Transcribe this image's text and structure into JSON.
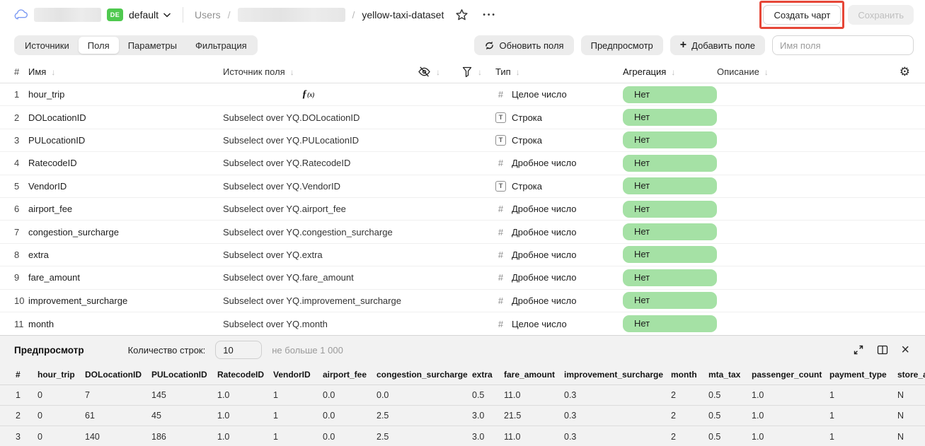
{
  "header": {
    "env_badge": "DE",
    "env_name": "default",
    "breadcrumb_root": "Users",
    "breadcrumb_sep": "/",
    "dataset_name": "yellow-taxi-dataset",
    "create_chart_label": "Создать чарт",
    "save_label": "Сохранить"
  },
  "tabs": {
    "items": [
      "Источники",
      "Поля",
      "Параметры",
      "Фильтрация"
    ],
    "active": "Поля"
  },
  "toolbar": {
    "refresh_label": "Обновить поля",
    "preview_label": "Предпросмотр",
    "add_field_label": "Добавить поле",
    "field_name_placeholder": "Имя поля"
  },
  "icons": {
    "sort_arrow": "↓",
    "gear": "⚙",
    "more": "•••",
    "close": "×",
    "plus": "+",
    "hash": "#",
    "str_box": "T",
    "formula": "ƒ",
    "formula_sub": "(x)"
  },
  "fields_table": {
    "headers": {
      "number": "#",
      "name": "Имя",
      "source": "Источник поля",
      "type": "Тип",
      "aggregation": "Агрегация",
      "description": "Описание"
    },
    "type_labels": {
      "int": "Целое число",
      "str": "Строка",
      "float": "Дробное число"
    },
    "rows": [
      {
        "num": "1",
        "name": "hour_trip",
        "source": "",
        "formula": true,
        "type": "int",
        "aggregation": "Нет",
        "description": ""
      },
      {
        "num": "2",
        "name": "DOLocationID",
        "source": "Subselect over YQ.DOLocationID",
        "formula": false,
        "type": "str",
        "aggregation": "Нет",
        "description": ""
      },
      {
        "num": "3",
        "name": "PULocationID",
        "source": "Subselect over YQ.PULocationID",
        "formula": false,
        "type": "str",
        "aggregation": "Нет",
        "description": ""
      },
      {
        "num": "4",
        "name": "RatecodeID",
        "source": "Subselect over YQ.RatecodeID",
        "formula": false,
        "type": "float",
        "aggregation": "Нет",
        "description": ""
      },
      {
        "num": "5",
        "name": "VendorID",
        "source": "Subselect over YQ.VendorID",
        "formula": false,
        "type": "str",
        "aggregation": "Нет",
        "description": ""
      },
      {
        "num": "6",
        "name": "airport_fee",
        "source": "Subselect over YQ.airport_fee",
        "formula": false,
        "type": "float",
        "aggregation": "Нет",
        "description": ""
      },
      {
        "num": "7",
        "name": "congestion_surcharge",
        "source": "Subselect over YQ.congestion_surcharge",
        "formula": false,
        "type": "float",
        "aggregation": "Нет",
        "description": ""
      },
      {
        "num": "8",
        "name": "extra",
        "source": "Subselect over YQ.extra",
        "formula": false,
        "type": "float",
        "aggregation": "Нет",
        "description": ""
      },
      {
        "num": "9",
        "name": "fare_amount",
        "source": "Subselect over YQ.fare_amount",
        "formula": false,
        "type": "float",
        "aggregation": "Нет",
        "description": ""
      },
      {
        "num": "10",
        "name": "improvement_surcharge",
        "source": "Subselect over YQ.improvement_surcharge",
        "formula": false,
        "type": "float",
        "aggregation": "Нет",
        "description": ""
      },
      {
        "num": "11",
        "name": "month",
        "source": "Subselect over YQ.month",
        "formula": false,
        "type": "int",
        "aggregation": "Нет",
        "description": ""
      }
    ]
  },
  "preview": {
    "title": "Предпросмотр",
    "row_count_label": "Количество строк:",
    "row_count_value": "10",
    "row_count_hint": "не больше 1 000",
    "columns": [
      "#",
      "hour_trip",
      "DOLocationID",
      "PULocationID",
      "RatecodeID",
      "VendorID",
      "airport_fee",
      "congestion_surcharge",
      "extra",
      "fare_amount",
      "improvement_surcharge",
      "month",
      "mta_tax",
      "passenger_count",
      "payment_type",
      "store_an"
    ],
    "rows": [
      [
        "1",
        "0",
        "7",
        "145",
        "1.0",
        "1",
        "0.0",
        "0.0",
        "0.5",
        "11.0",
        "0.3",
        "2",
        "0.5",
        "1.0",
        "1",
        "N"
      ],
      [
        "2",
        "0",
        "61",
        "45",
        "1.0",
        "1",
        "0.0",
        "2.5",
        "3.0",
        "21.5",
        "0.3",
        "2",
        "0.5",
        "1.0",
        "1",
        "N"
      ],
      [
        "3",
        "0",
        "140",
        "186",
        "1.0",
        "1",
        "0.0",
        "2.5",
        "3.0",
        "11.0",
        "0.3",
        "2",
        "0.5",
        "1.0",
        "1",
        "N"
      ]
    ]
  },
  "colors": {
    "aggregation_pill": "#a5e1a5",
    "env_badge_green": "#4fc94f",
    "annotation_red": "#e64637",
    "cloud_blue": "#7d9bf3"
  }
}
